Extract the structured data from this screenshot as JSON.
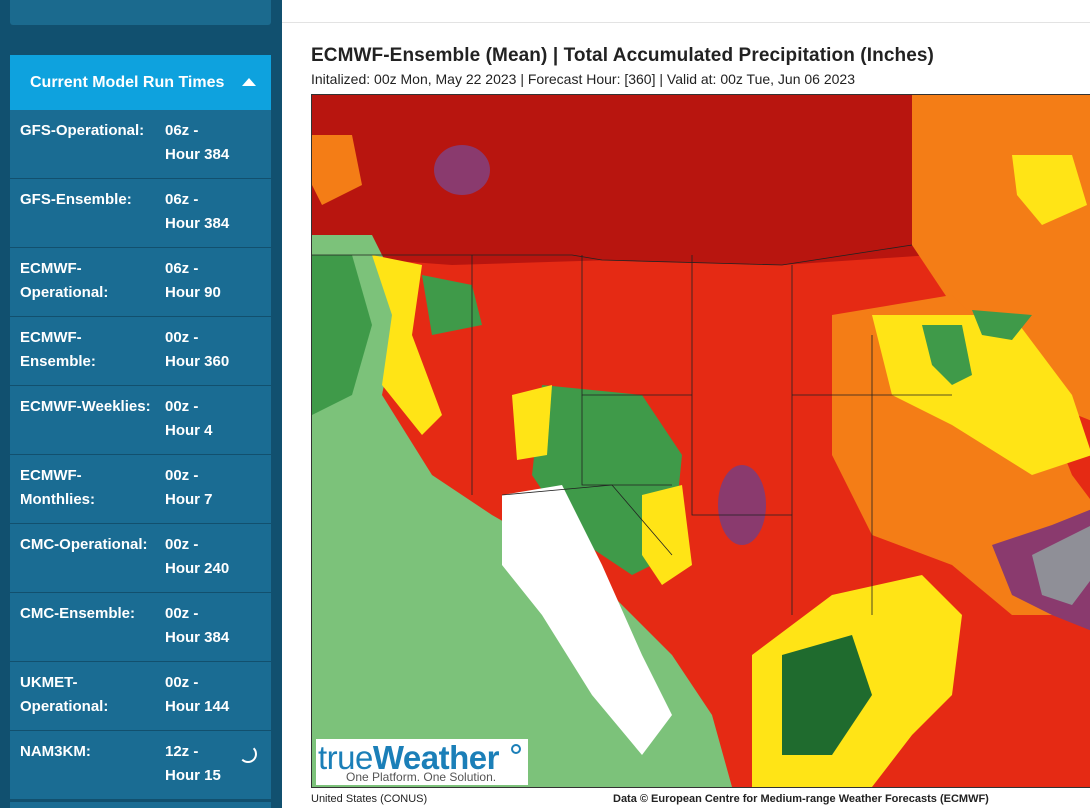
{
  "sidebar": {
    "panel_title": "Current Model Run Times",
    "toggle_icon": "caret-up-icon",
    "runs": [
      {
        "name": "GFS-Operational:",
        "run": "06z -",
        "hour": "Hour 384"
      },
      {
        "name": "GFS-Ensemble:",
        "run": "06z -",
        "hour": "Hour 384"
      },
      {
        "name": "ECMWF-",
        "name2": "Operational:",
        "run": "06z -",
        "hour": "Hour 90"
      },
      {
        "name": "ECMWF-",
        "name2": "Ensemble:",
        "run": "00z -",
        "hour": "Hour 360"
      },
      {
        "name": "ECMWF-Weeklies:",
        "run": "00z -",
        "hour": "Hour 4"
      },
      {
        "name": "ECMWF-",
        "name2": "Monthlies:",
        "run": "00z -",
        "hour": "Hour 7"
      },
      {
        "name": "CMC-Operational:",
        "run": "00z -",
        "hour": "Hour 240"
      },
      {
        "name": "CMC-Ensemble:",
        "run": "00z -",
        "hour": "Hour 384"
      },
      {
        "name": "UKMET-",
        "name2": "Operational:",
        "run": "00z -",
        "hour": "Hour 144"
      },
      {
        "name": "NAM3KM:",
        "run": "12z -",
        "hour": "Hour 15",
        "status_icon": "loading-spinner-icon"
      }
    ]
  },
  "map": {
    "title": "ECMWF-Ensemble (Mean) | Total Accumulated Precipitation (Inches)",
    "subtitle": "Initalized: 00z Mon, May 22 2023  |  Forecast Hour: [360]  |  Valid at: 00z Tue, Jun 06 2023",
    "region_label": "United States (CONUS)",
    "credit": "Data © European Centre for Medium-range Weather Forecasts (ECMWF)",
    "logo_text_1": "true",
    "logo_text_2": "Weather",
    "logo_tagline": "One Platform. One Solution.",
    "colors": {
      "dark_red": "#b8150f",
      "red": "#e52a14",
      "orange": "#f47d16",
      "yellow": "#ffe416",
      "light_green": "#7cc27a",
      "green": "#3f9a49",
      "dark_green": "#1f6b2e",
      "purple": "#8a3a6e",
      "gray": "#8f8f97"
    }
  }
}
